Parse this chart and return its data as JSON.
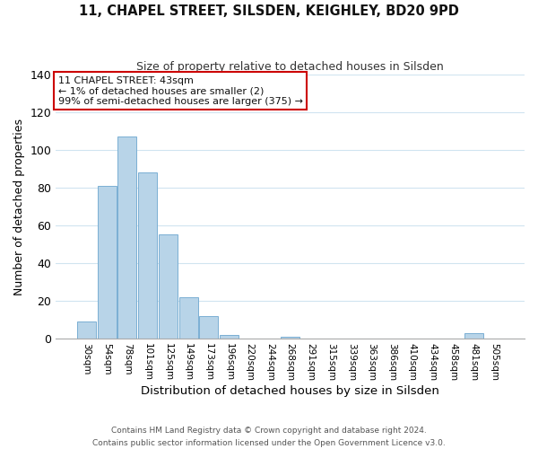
{
  "title": "11, CHAPEL STREET, SILSDEN, KEIGHLEY, BD20 9PD",
  "subtitle": "Size of property relative to detached houses in Silsden",
  "xlabel": "Distribution of detached houses by size in Silsden",
  "ylabel": "Number of detached properties",
  "bar_color": "#b8d4e8",
  "bar_edge_color": "#7aafd4",
  "background_color": "#ffffff",
  "grid_color": "#d0e4f0",
  "ylim": [
    0,
    140
  ],
  "yticks": [
    0,
    20,
    40,
    60,
    80,
    100,
    120,
    140
  ],
  "bin_labels": [
    "30sqm",
    "54sqm",
    "78sqm",
    "101sqm",
    "125sqm",
    "149sqm",
    "173sqm",
    "196sqm",
    "220sqm",
    "244sqm",
    "268sqm",
    "291sqm",
    "315sqm",
    "339sqm",
    "363sqm",
    "386sqm",
    "410sqm",
    "434sqm",
    "458sqm",
    "481sqm",
    "505sqm"
  ],
  "bar_heights": [
    9,
    81,
    107,
    88,
    55,
    22,
    12,
    2,
    0,
    0,
    1,
    0,
    0,
    0,
    0,
    0,
    0,
    0,
    0,
    3,
    0
  ],
  "annotation_title": "11 CHAPEL STREET: 43sqm",
  "annotation_line1": "← 1% of detached houses are smaller (2)",
  "annotation_line2": "99% of semi-detached houses are larger (375) →",
  "annotation_box_color": "#ffffff",
  "annotation_box_edge": "#cc0000",
  "footer1": "Contains HM Land Registry data © Crown copyright and database right 2024.",
  "footer2": "Contains public sector information licensed under the Open Government Licence v3.0."
}
